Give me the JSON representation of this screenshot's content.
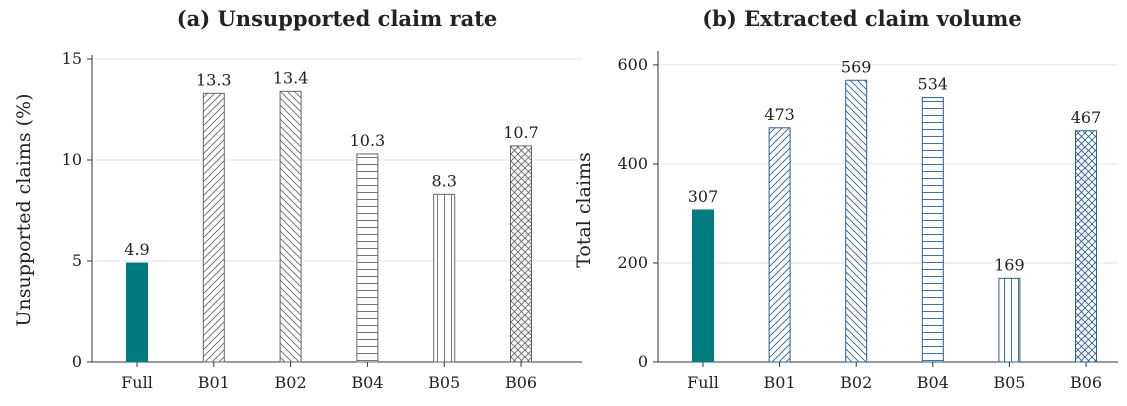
{
  "chart_data": [
    {
      "type": "bar",
      "title": "(a) Unsupported claim rate",
      "xlabel": "",
      "ylabel": "Unsupported claims (%)",
      "categories": [
        "Full",
        "B01",
        "B02",
        "B04",
        "B05",
        "B06"
      ],
      "values": [
        4.9,
        13.3,
        13.4,
        10.3,
        8.3,
        10.7
      ],
      "value_labels": [
        "4.9",
        "13.3",
        "13.4",
        "10.3",
        "8.3",
        "10.7"
      ],
      "yticks": [
        "0",
        "5",
        "10",
        "15"
      ],
      "ylim": [
        0,
        15
      ],
      "grid": "horizontal",
      "bar_styles": [
        "solid",
        "diag-up",
        "diag-down",
        "horizontal-lines",
        "vertical-lines",
        "crosshatch"
      ],
      "colors": {
        "full": "#007b80",
        "hatch": "#666666"
      }
    },
    {
      "type": "bar",
      "title": "(b) Extracted claim volume",
      "xlabel": "",
      "ylabel": "Total claims",
      "categories": [
        "Full",
        "B01",
        "B02",
        "B04",
        "B05",
        "B06"
      ],
      "values": [
        307,
        473,
        569,
        534,
        169,
        467
      ],
      "value_labels": [
        "307",
        "473",
        "569",
        "534",
        "169",
        "467"
      ],
      "yticks": [
        "0",
        "200",
        "400",
        "600"
      ],
      "ylim": [
        0,
        620
      ],
      "grid": "horizontal",
      "bar_styles": [
        "solid",
        "diag-up",
        "diag-down",
        "horizontal-lines",
        "vertical-lines",
        "crosshatch"
      ],
      "colors": {
        "full": "#007b80",
        "hatch": "#2f5f8a"
      }
    }
  ]
}
